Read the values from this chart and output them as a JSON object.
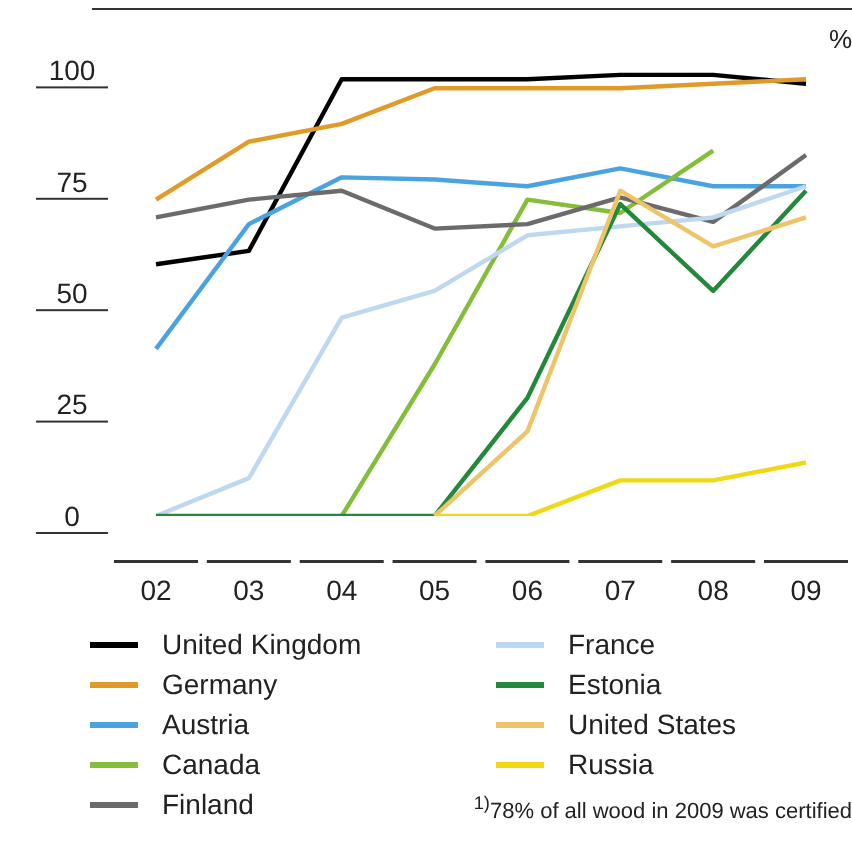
{
  "chart_data": {
    "type": "line",
    "ylabel": "%",
    "categories": [
      "02",
      "03",
      "04",
      "05",
      "06",
      "07",
      "08",
      "09"
    ],
    "ylim": [
      0,
      114
    ],
    "yticks": [
      0,
      25,
      50,
      75,
      100
    ],
    "grid": false,
    "legend": "bottom",
    "annotations": [
      "$^{1)}$78% of all wood in 2009 was certified"
    ],
    "series": [
      {
        "name": "United Kingdom",
        "color": "#000000",
        "values": [
          56.5,
          59.5,
          98,
          98,
          98,
          99,
          99,
          97
        ]
      },
      {
        "name": "Germany",
        "color": "#e09a2a",
        "values": [
          71,
          84,
          88,
          96,
          96,
          96,
          97,
          98
        ]
      },
      {
        "name": "Austria",
        "color": "#4aa3e0",
        "values": [
          37.5,
          65.5,
          76,
          75.5,
          74,
          78,
          74,
          74
        ]
      },
      {
        "name": "Canada",
        "color": "#84bd3a",
        "values": [
          null,
          null,
          0,
          34,
          71,
          68,
          82,
          null
        ]
      },
      {
        "name": "Finland",
        "color": "#6b6b6b",
        "values": [
          67,
          71,
          73,
          64.5,
          65.5,
          71.5,
          66,
          81
        ]
      },
      {
        "name": "France",
        "color": "#bdd8f0",
        "values": [
          0,
          8.5,
          44.5,
          50.5,
          63,
          65,
          67,
          74
        ]
      },
      {
        "name": "Estonia",
        "color": "#23883a",
        "values": [
          0,
          0,
          0,
          0,
          26.5,
          70,
          50.5,
          73
        ]
      },
      {
        "name": "United States",
        "color": "#eec46b",
        "values": [
          null,
          null,
          null,
          0,
          19,
          73,
          60.5,
          67
        ]
      },
      {
        "name": "Russia",
        "color": "#f0d816",
        "values": [
          null,
          null,
          null,
          0,
          0,
          8,
          8,
          12
        ]
      }
    ]
  }
}
